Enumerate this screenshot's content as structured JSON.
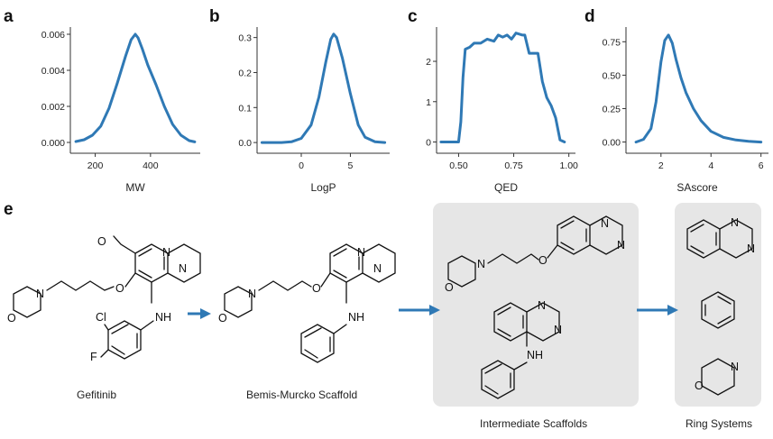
{
  "panels": {
    "a": {
      "letter": "a"
    },
    "b": {
      "letter": "b"
    },
    "c": {
      "letter": "c"
    },
    "d": {
      "letter": "d"
    },
    "e": {
      "letter": "e"
    }
  },
  "chart_data": [
    {
      "type": "line",
      "xlabel": "MW",
      "xticks": [
        "200",
        "400"
      ],
      "yticks": [
        "0.000",
        "0.002",
        "0.004",
        "0.006"
      ],
      "xlim": [
        110,
        580
      ],
      "ylim": [
        -0.0002,
        0.0064
      ],
      "x": [
        130,
        160,
        190,
        220,
        250,
        280,
        310,
        330,
        345,
        355,
        370,
        390,
        420,
        450,
        480,
        510,
        540,
        560
      ],
      "y": [
        5e-05,
        0.00015,
        0.0004,
        0.0009,
        0.0019,
        0.0033,
        0.0048,
        0.0057,
        0.006,
        0.0058,
        0.0052,
        0.0043,
        0.0032,
        0.002,
        0.001,
        0.0004,
        0.0001,
        3e-05
      ]
    },
    {
      "type": "line",
      "xlabel": "LogP",
      "xticks": [
        "0",
        "5"
      ],
      "yticks": [
        "0.0",
        "0.1",
        "0.2",
        "0.3"
      ],
      "xlim": [
        -4.5,
        9
      ],
      "ylim": [
        -0.01,
        0.33
      ],
      "x": [
        -4,
        -2,
        -1,
        0,
        1,
        1.8,
        2.5,
        3,
        3.3,
        3.6,
        4.2,
        5,
        5.8,
        6.5,
        7.5,
        8.5
      ],
      "y": [
        0,
        0,
        0.002,
        0.012,
        0.05,
        0.13,
        0.23,
        0.295,
        0.31,
        0.3,
        0.24,
        0.14,
        0.05,
        0.015,
        0.002,
        0
      ]
    },
    {
      "type": "line",
      "xlabel": "QED",
      "xticks": [
        "0.50",
        "0.75",
        "1.00"
      ],
      "yticks": [
        "0",
        "1",
        "2"
      ],
      "xlim": [
        0.4,
        1.03
      ],
      "ylim": [
        -0.1,
        2.85
      ],
      "x": [
        0.42,
        0.5,
        0.51,
        0.52,
        0.53,
        0.55,
        0.57,
        0.6,
        0.63,
        0.66,
        0.68,
        0.7,
        0.72,
        0.74,
        0.76,
        0.79,
        0.8,
        0.82,
        0.84,
        0.86,
        0.88,
        0.9,
        0.92,
        0.94,
        0.96,
        0.98
      ],
      "y": [
        0,
        0,
        0.5,
        1.6,
        2.3,
        2.35,
        2.45,
        2.45,
        2.55,
        2.5,
        2.65,
        2.6,
        2.65,
        2.55,
        2.7,
        2.65,
        2.65,
        2.2,
        2.2,
        2.2,
        1.5,
        1.1,
        0.9,
        0.6,
        0.05,
        0
      ]
    },
    {
      "type": "line",
      "xlabel": "SAscore",
      "xticks": [
        "2",
        "4",
        "6"
      ],
      "yticks": [
        "0.00",
        "0.25",
        "0.50",
        "0.75"
      ],
      "xlim": [
        0.6,
        6.3
      ],
      "ylim": [
        -0.03,
        0.86
      ],
      "x": [
        1.0,
        1.3,
        1.6,
        1.8,
        2.0,
        2.15,
        2.3,
        2.45,
        2.6,
        2.8,
        3.0,
        3.3,
        3.6,
        4.0,
        4.5,
        5.0,
        5.5,
        6.0
      ],
      "y": [
        0,
        0.02,
        0.1,
        0.3,
        0.6,
        0.76,
        0.8,
        0.74,
        0.62,
        0.48,
        0.37,
        0.25,
        0.16,
        0.08,
        0.035,
        0.015,
        0.005,
        0
      ]
    }
  ],
  "molecules": {
    "gefitinib": {
      "caption": "Gefitinib"
    },
    "bemis_murcko": {
      "caption": "Bemis-Murcko Scaffold"
    },
    "intermediate": {
      "caption": "Intermediate Scaffolds"
    },
    "rings": {
      "caption": "Ring Systems"
    }
  },
  "atoms": {
    "N": "N",
    "O": "O",
    "NH": "NH",
    "Cl": "Cl",
    "F": "F"
  },
  "colors": {
    "curve": "#2f79b5",
    "arrow": "#2f79b5",
    "box": "#e6e6e6"
  }
}
